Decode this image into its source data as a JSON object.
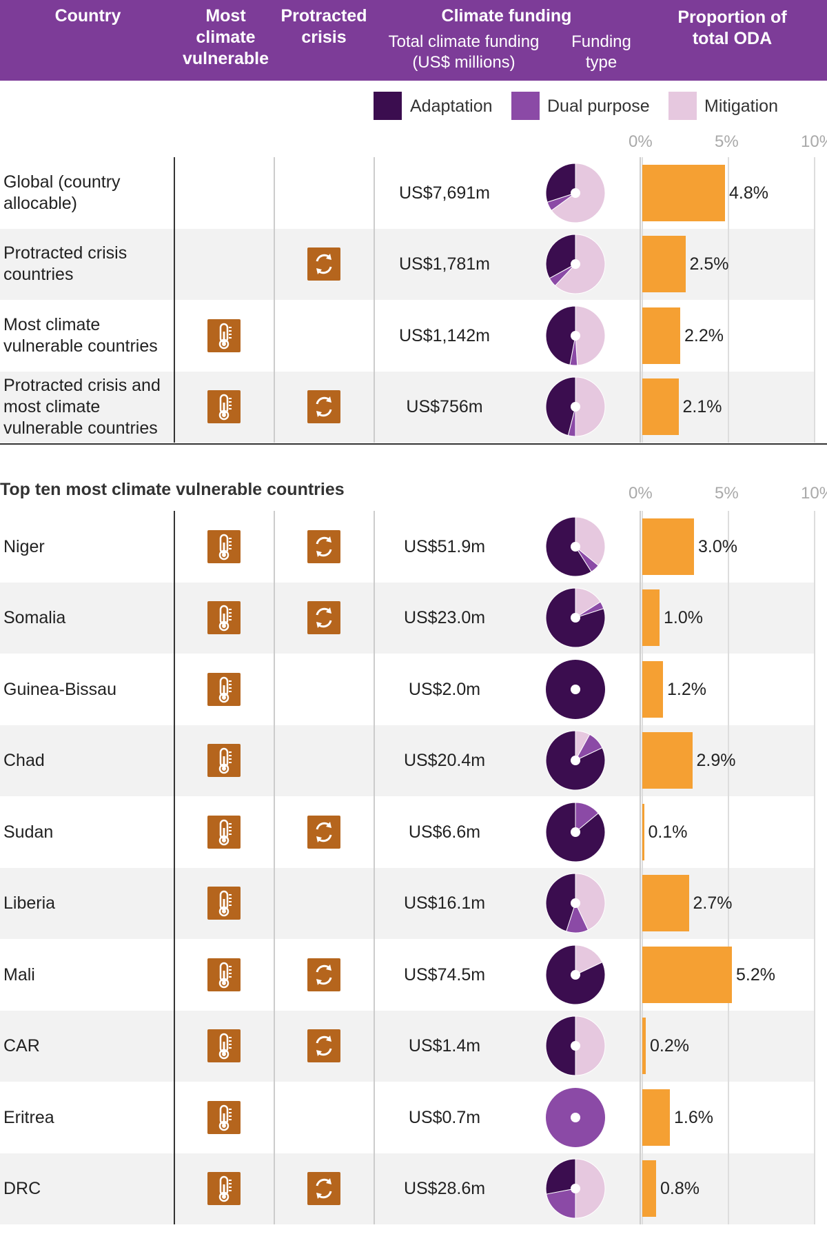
{
  "header": {
    "country": "Country",
    "most_vulnerable": "Most climate vulnerable",
    "protracted": "Protracted crisis",
    "climate_funding": "Climate funding",
    "total_funding": "Total climate funding (US$ millions)",
    "funding_type": "Funding type",
    "proportion": "Proportion of total ODA"
  },
  "legend": [
    {
      "label": "Adaptation",
      "color": "#3b0d4f"
    },
    {
      "label": "Dual purpose",
      "color": "#8b4aa6"
    },
    {
      "label": "Mitigation",
      "color": "#e6c8df"
    }
  ],
  "axis_ticks": [
    "0%",
    "5%",
    "10%"
  ],
  "section_title": "Top ten most climate vulnerable countries",
  "icons": {
    "vulnerable": "thermometer-icon",
    "protracted": "cycle-arrows-icon",
    "color": "#b5651d"
  },
  "bar_color": "#f5a033",
  "chart_data": {
    "type": "table",
    "columns": [
      "Country",
      "Most climate vulnerable",
      "Protracted crisis",
      "Total climate funding (US$ millions)",
      "Funding type",
      "Proportion of total ODA"
    ],
    "funding_type_series": [
      "Adaptation",
      "Dual purpose",
      "Mitigation"
    ],
    "xlim": [
      0,
      10
    ],
    "groups": [
      {
        "title": "",
        "rows": [
          {
            "label": "Global (country allocable)",
            "vulnerable": false,
            "protracted": false,
            "amount": "US$7,691m",
            "pie": [
              0.3,
              0.05,
              0.65
            ],
            "pct": 4.8,
            "pct_label": "4.8%"
          },
          {
            "label": "Protracted crisis countries",
            "vulnerable": false,
            "protracted": true,
            "amount": "US$1,781m",
            "pie": [
              0.33,
              0.05,
              0.62
            ],
            "pct": 2.5,
            "pct_label": "2.5%"
          },
          {
            "label": "Most climate vulnerable countries",
            "vulnerable": true,
            "protracted": false,
            "amount": "US$1,142m",
            "pie": [
              0.47,
              0.04,
              0.49
            ],
            "pct": 2.2,
            "pct_label": "2.2%"
          },
          {
            "label": "Protracted crisis and most climate vulnerable countries",
            "vulnerable": true,
            "protracted": true,
            "amount": "US$756m",
            "pie": [
              0.46,
              0.04,
              0.5
            ],
            "pct": 2.1,
            "pct_label": "2.1%"
          }
        ]
      },
      {
        "title": "Top ten most climate vulnerable countries",
        "rows": [
          {
            "label": "Niger",
            "vulnerable": true,
            "protracted": true,
            "amount": "US$51.9m",
            "pie": [
              0.59,
              0.05,
              0.36
            ],
            "pct": 3.0,
            "pct_label": "3.0%"
          },
          {
            "label": "Somalia",
            "vulnerable": true,
            "protracted": true,
            "amount": "US$23.0m",
            "pie": [
              0.8,
              0.04,
              0.16
            ],
            "pct": 1.0,
            "pct_label": "1.0%"
          },
          {
            "label": "Guinea-Bissau",
            "vulnerable": true,
            "protracted": false,
            "amount": "US$2.0m",
            "pie": [
              1.0,
              0.0,
              0.0
            ],
            "pct": 1.2,
            "pct_label": "1.2%"
          },
          {
            "label": "Chad",
            "vulnerable": true,
            "protracted": false,
            "amount": "US$20.4m",
            "pie": [
              0.82,
              0.1,
              0.08
            ],
            "pct": 2.9,
            "pct_label": "2.9%"
          },
          {
            "label": "Sudan",
            "vulnerable": true,
            "protracted": true,
            "amount": "US$6.6m",
            "pie": [
              0.86,
              0.14,
              0.0
            ],
            "pct": 0.1,
            "pct_label": "0.1%"
          },
          {
            "label": "Liberia",
            "vulnerable": true,
            "protracted": false,
            "amount": "US$16.1m",
            "pie": [
              0.45,
              0.12,
              0.43
            ],
            "pct": 2.7,
            "pct_label": "2.7%"
          },
          {
            "label": "Mali",
            "vulnerable": true,
            "protracted": true,
            "amount": "US$74.5m",
            "pie": [
              0.82,
              0.0,
              0.18
            ],
            "pct": 5.2,
            "pct_label": "5.2%"
          },
          {
            "label": "CAR",
            "vulnerable": true,
            "protracted": true,
            "amount": "US$1.4m",
            "pie": [
              0.5,
              0.0,
              0.5
            ],
            "pct": 0.2,
            "pct_label": "0.2%"
          },
          {
            "label": "Eritrea",
            "vulnerable": true,
            "protracted": false,
            "amount": "US$0.7m",
            "pie": [
              0.0,
              1.0,
              0.0
            ],
            "pct": 1.6,
            "pct_label": "1.6%"
          },
          {
            "label": "DRC",
            "vulnerable": true,
            "protracted": true,
            "amount": "US$28.6m",
            "pie": [
              0.28,
              0.22,
              0.5
            ],
            "pct": 0.8,
            "pct_label": "0.8%"
          }
        ]
      }
    ]
  }
}
